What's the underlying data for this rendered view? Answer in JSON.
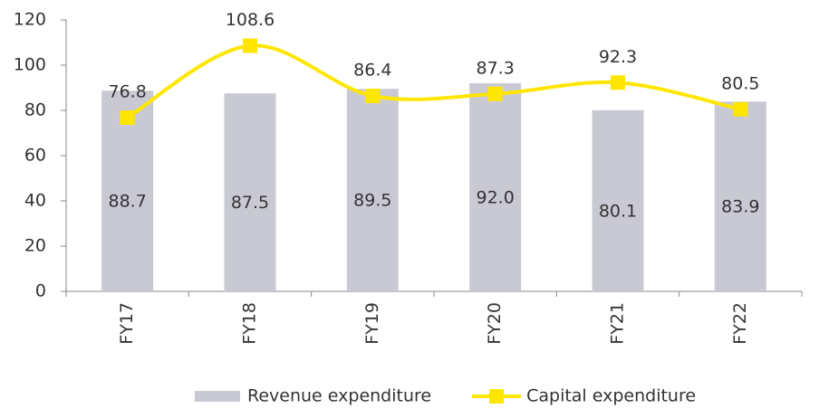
{
  "chart_data": {
    "type": "combo",
    "categories": [
      "FY17",
      "FY18",
      "FY19",
      "FY20",
      "FY21",
      "FY22"
    ],
    "series": [
      {
        "name": "Revenue expenditure",
        "type": "bar",
        "color": "#c9c9d4",
        "values": [
          88.7,
          87.5,
          89.5,
          92.0,
          80.1,
          83.9
        ],
        "value_labels": [
          "88.7",
          "87.5",
          "89.5",
          "92.0",
          "80.1",
          "83.9"
        ]
      },
      {
        "name": "Capital expenditure",
        "type": "line",
        "color": "#ffe600",
        "values": [
          76.8,
          108.6,
          86.4,
          87.3,
          92.3,
          80.5
        ]
      }
    ],
    "ylim": [
      0,
      120
    ],
    "yticks": [
      0,
      20,
      40,
      60,
      80,
      100,
      120
    ],
    "grid": false,
    "legend": "bottom"
  }
}
